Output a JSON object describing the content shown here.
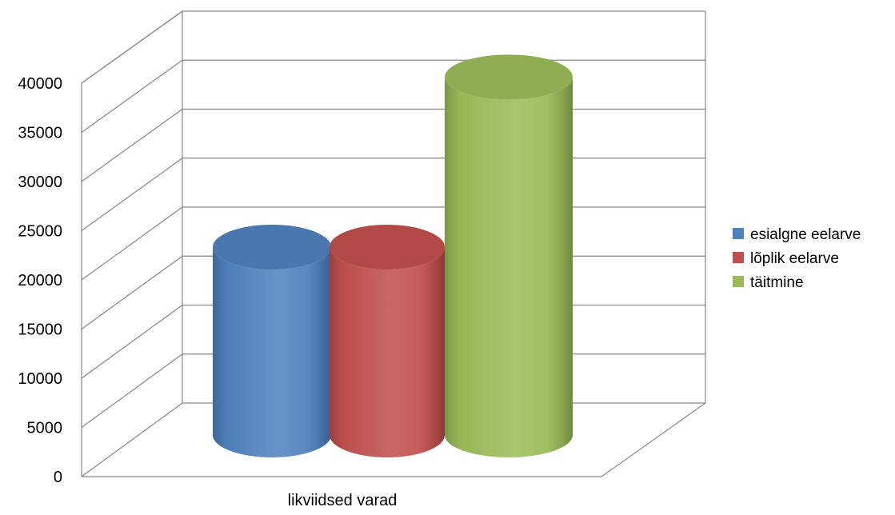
{
  "chart_data": {
    "type": "bar",
    "style": "3d-cylinder",
    "categories": [
      "likviidsed varad"
    ],
    "series": [
      {
        "name": "esialgne eelarve",
        "values": [
          20000
        ],
        "color": "#4F81BD"
      },
      {
        "name": "lõplik eelarve",
        "values": [
          20000
        ],
        "color": "#C0504D"
      },
      {
        "name": "täitmine",
        "values": [
          38100
        ],
        "color": "#9BBB59"
      }
    ],
    "y_ticks": [
      "0",
      "5000",
      "10000",
      "15000",
      "20000",
      "25000",
      "30000",
      "35000",
      "40000"
    ],
    "ylim": [
      0,
      40000
    ],
    "grid": true,
    "legend_position": "right"
  }
}
